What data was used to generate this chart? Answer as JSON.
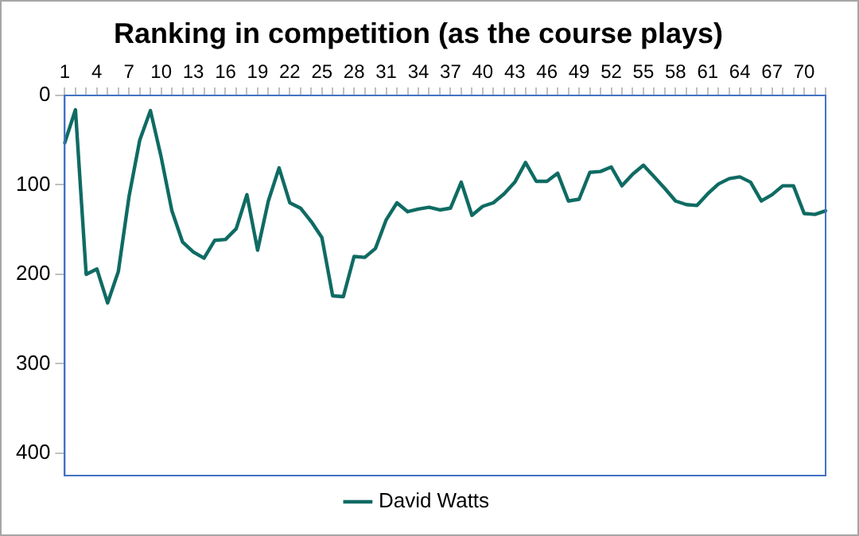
{
  "chart_data": {
    "type": "line",
    "title": "Ranking in competition (as the course plays)",
    "categories": [
      "1",
      null,
      null,
      "4",
      null,
      null,
      "7",
      null,
      null,
      "10",
      null,
      null,
      "13",
      null,
      null,
      "16",
      null,
      null,
      "19",
      null,
      null,
      "22",
      null,
      null,
      "25",
      null,
      null,
      "28",
      null,
      null,
      "31",
      null,
      null,
      "34",
      null,
      null,
      "37",
      null,
      null,
      "40",
      null,
      null,
      "43",
      null,
      null,
      "46",
      null,
      null,
      "49",
      null,
      null,
      "52",
      null,
      null,
      "55",
      null,
      null,
      "58",
      null,
      null,
      "61",
      null,
      null,
      "64",
      null,
      null,
      "67",
      null,
      null,
      "70",
      null,
      null
    ],
    "series": [
      {
        "name": "David Watts",
        "color": "#0f6b63",
        "values": [
          53,
          16,
          200,
          194,
          232,
          197,
          113,
          50,
          17,
          69,
          129,
          164,
          175,
          182,
          162,
          161,
          149,
          111,
          173,
          118,
          81,
          120,
          126,
          141,
          159,
          224,
          225,
          180,
          181,
          171,
          139,
          120,
          130,
          127,
          125,
          128,
          126,
          97,
          134,
          124,
          120,
          110,
          97,
          75,
          96,
          96,
          87,
          118,
          116,
          86,
          85,
          80,
          101,
          88,
          78,
          91,
          104,
          118,
          122,
          123,
          110,
          99,
          93,
          91,
          97,
          118,
          111,
          101,
          101,
          132,
          133,
          129
        ]
      }
    ],
    "ylim": [
      425,
      0
    ],
    "yticks": [
      0,
      100,
      200,
      300,
      400
    ],
    "grid": false,
    "legend": "bottom",
    "marker": "none",
    "line_style": "solid"
  }
}
